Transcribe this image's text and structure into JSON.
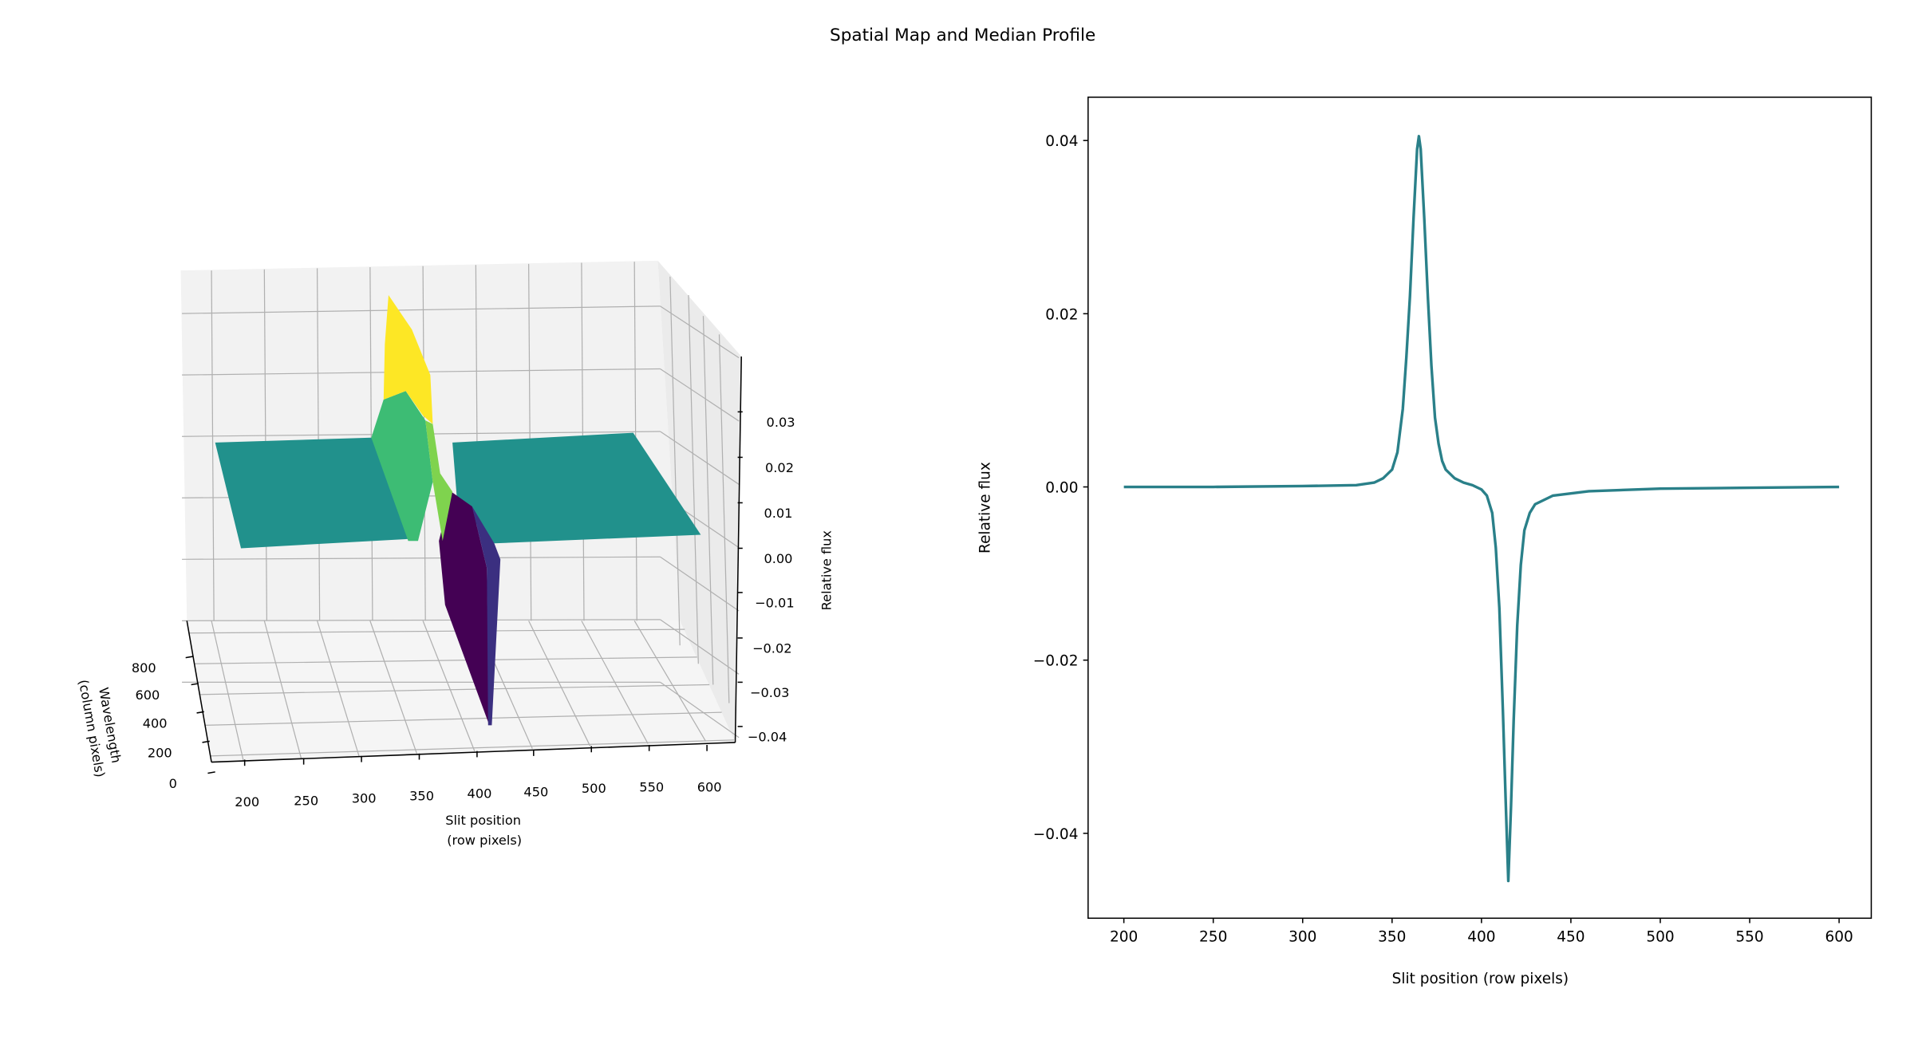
{
  "title": "Spatial Map and Median Profile",
  "chart_data": [
    {
      "type": "surface3d",
      "colormap": "viridis",
      "xlabel": "Slit position\n(row pixels)",
      "xlabel_lines": [
        "Slit position",
        "(row pixels)"
      ],
      "ylabel_lines": [
        "Wavelength",
        "(column pixels)"
      ],
      "zlabel": "Relative flux",
      "x_ticks": [
        "200",
        "250",
        "300",
        "350",
        "400",
        "450",
        "500",
        "550",
        "600"
      ],
      "y_ticks": [
        "800",
        "600",
        "400",
        "200",
        "0"
      ],
      "z_ticks": [
        "0.03",
        "0.02",
        "0.01",
        "0.00",
        "−0.01",
        "−0.02",
        "−0.03",
        "−0.04"
      ],
      "xlim": [
        180,
        620
      ],
      "ylim": [
        0,
        900
      ],
      "zlim": [
        -0.045,
        0.04
      ],
      "peak": {
        "x": 365,
        "z": 0.04
      },
      "trough": {
        "x": 415,
        "z": -0.045
      },
      "colors": {
        "high": "#fde725",
        "mid": "#21918c",
        "green": "#3dbc74",
        "low": "#440154",
        "lowmid": "#3b2f80"
      }
    },
    {
      "type": "line",
      "xlabel": "Slit position (row pixels)",
      "ylabel": "Relative flux",
      "xlim": [
        180,
        618
      ],
      "ylim": [
        -0.0498,
        0.045
      ],
      "x_ticks": [
        200,
        250,
        300,
        350,
        400,
        450,
        500,
        550,
        600
      ],
      "x_tick_labels": [
        "200",
        "250",
        "300",
        "350",
        "400",
        "450",
        "500",
        "550",
        "600"
      ],
      "y_ticks": [
        0.04,
        0.02,
        0.0,
        -0.02,
        -0.04
      ],
      "y_tick_labels": [
        "0.04",
        "0.02",
        "0.00",
        "−0.02",
        "−0.04"
      ],
      "grid": false,
      "color": "#2a8089",
      "x": [
        200,
        250,
        300,
        330,
        340,
        345,
        350,
        353,
        356,
        358,
        360,
        362,
        364,
        365,
        366,
        368,
        370,
        372,
        374,
        376,
        378,
        380,
        385,
        390,
        395,
        400,
        403,
        406,
        408,
        410,
        412,
        413.5,
        415,
        416.5,
        418,
        420,
        422,
        424,
        427,
        430,
        440,
        460,
        500,
        550,
        600
      ],
      "y": [
        0,
        0,
        0.0001,
        0.0002,
        0.0005,
        0.001,
        0.002,
        0.004,
        0.009,
        0.015,
        0.022,
        0.031,
        0.039,
        0.0405,
        0.039,
        0.031,
        0.022,
        0.014,
        0.008,
        0.005,
        0.003,
        0.002,
        0.001,
        0.0005,
        0.0002,
        -0.0003,
        -0.001,
        -0.003,
        -0.007,
        -0.014,
        -0.026,
        -0.036,
        -0.0455,
        -0.037,
        -0.027,
        -0.016,
        -0.009,
        -0.005,
        -0.003,
        -0.002,
        -0.001,
        -0.0005,
        -0.0002,
        -0.0001,
        0
      ]
    }
  ]
}
